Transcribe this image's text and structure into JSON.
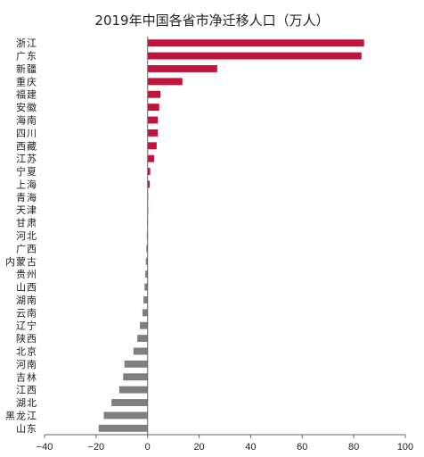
{
  "chart_data": {
    "type": "bar",
    "orientation": "horizontal",
    "title": "2019年中国各省市净迁移人口（万人）",
    "xlabel": "",
    "ylabel": "",
    "xlim": [
      -40,
      100
    ],
    "xticks": [
      -40,
      -20,
      0,
      20,
      40,
      60,
      80,
      100
    ],
    "grid": false,
    "colors": {
      "positive": "#c0143c",
      "negative": "#7f7f7f"
    },
    "categories": [
      "浙江",
      "广东",
      "新疆",
      "重庆",
      "福建",
      "安徽",
      "海南",
      "四川",
      "西藏",
      "江苏",
      "宁夏",
      "上海",
      "青海",
      "天津",
      "甘肃",
      "河北",
      "广西",
      "内蒙古",
      "贵州",
      "山西",
      "湖南",
      "云南",
      "辽宁",
      "陕西",
      "北京",
      "河南",
      "吉林",
      "江西",
      "湖北",
      "黑龙江",
      "山东"
    ],
    "values": [
      84.0,
      83.0,
      27.0,
      13.5,
      5.0,
      4.5,
      4.0,
      4.0,
      3.5,
      2.5,
      1.0,
      0.8,
      0.2,
      0.1,
      -0.2,
      -0.3,
      -0.5,
      -0.7,
      -0.9,
      -1.2,
      -1.6,
      -2.0,
      -3.0,
      -4.0,
      -5.5,
      -9.0,
      -9.5,
      -11.0,
      -14.0,
      -17.0,
      -19.0
    ]
  }
}
